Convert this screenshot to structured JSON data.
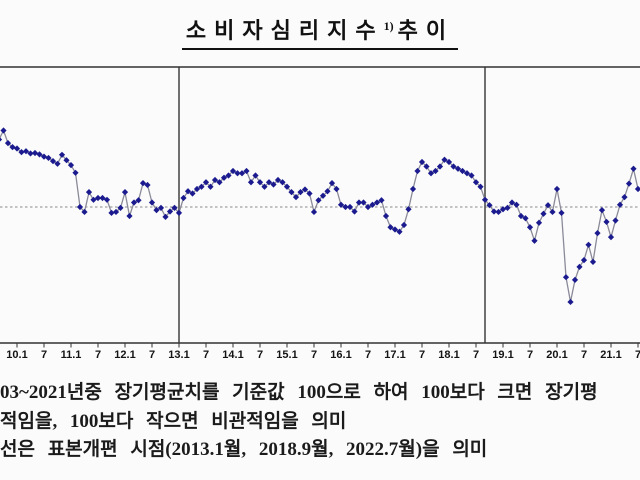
{
  "title": {
    "main": "소비자심리지수",
    "sup": "1)",
    "suffix": "추이"
  },
  "chart_data": {
    "type": "line",
    "title": "소비자심리지수 추이",
    "series": [
      {
        "name": "소비자심리지수",
        "start": "2009.9",
        "end": "2021.7",
        "frequency": "monthly",
        "values": [
          115,
          117,
          114.2,
          113.3,
          113,
          112.2,
          112.4,
          111.9,
          112,
          111.7,
          111.2,
          110.9,
          110.2,
          109.6,
          111.6,
          110.4,
          109.3,
          107.6,
          100,
          98.9,
          103.3,
          101.6,
          102,
          102,
          101.6,
          98.7,
          98.9,
          99.8,
          103.3,
          98,
          101,
          101.5,
          105.3,
          104.9,
          101,
          99.3,
          99.8,
          97.8,
          99,
          99.8,
          98.7,
          102,
          103.5,
          103,
          104,
          104.5,
          105.5,
          104.5,
          106,
          105.5,
          106.5,
          107,
          108,
          107.5,
          107.5,
          108,
          105.5,
          107,
          105.5,
          104.5,
          105.5,
          105,
          106,
          105.5,
          104.5,
          103.3,
          102.2,
          103.3,
          103.9,
          103,
          98.9,
          101.5,
          102.5,
          103.5,
          105.3,
          104,
          100.5,
          100,
          100,
          99,
          101,
          101,
          100,
          100.5,
          101,
          101.5,
          98,
          95.5,
          95,
          94.5,
          96,
          99.5,
          104,
          108,
          110,
          109,
          107.5,
          108,
          109,
          110.5,
          110,
          109,
          108.5,
          108,
          107.5,
          107,
          105.5,
          104.5,
          101.6,
          100.4,
          99,
          98.9,
          99.5,
          99.8,
          101,
          100.5,
          98,
          97.5,
          95.5,
          92.5,
          96.5,
          98.5,
          100.4,
          98.9,
          104,
          98.7,
          84.4,
          78.9,
          83.8,
          86.7,
          88.2,
          91.6,
          87.8,
          94.2,
          99.3,
          96.7,
          93.3,
          97,
          100.5,
          102.2,
          105.2,
          108.5,
          104
        ]
      }
    ],
    "baseline_value": 100,
    "baseline_style": "dashed",
    "x_tick_labels": [
      "10.1",
      "7",
      "11.1",
      "7",
      "12.1",
      "7",
      "13.1",
      "7",
      "14.1",
      "7",
      "15.1",
      "7",
      "16.1",
      "7",
      "17.1",
      "7",
      "18.1",
      "7",
      "19.1",
      "7",
      "20.1",
      "7",
      "21.1",
      "7"
    ],
    "y_axis_labels_visible": false,
    "vertical_reference_lines": [
      {
        "label": "2013.1",
        "month_index": 40
      },
      {
        "label": "2018.9",
        "month_index": 108
      }
    ],
    "legend": "none",
    "colors": {
      "marker": "#1b1b8f",
      "line": "#8a8a99",
      "baseline": "#8a8a8a",
      "frame": "#333333",
      "reference_line": "#4d4d4d",
      "tick_label": "#141414"
    }
  },
  "footnotes": {
    "line1": "03~2021년중 장기평균치를 기준값 100으로 하여 100보다 크면 장기평",
    "line2": "적임을, 100보다 작으면 비관적임을 의미",
    "line3": "선은 표본개편 시점(2013.1월, 2018.9월, 2022.7월)을 의미"
  }
}
